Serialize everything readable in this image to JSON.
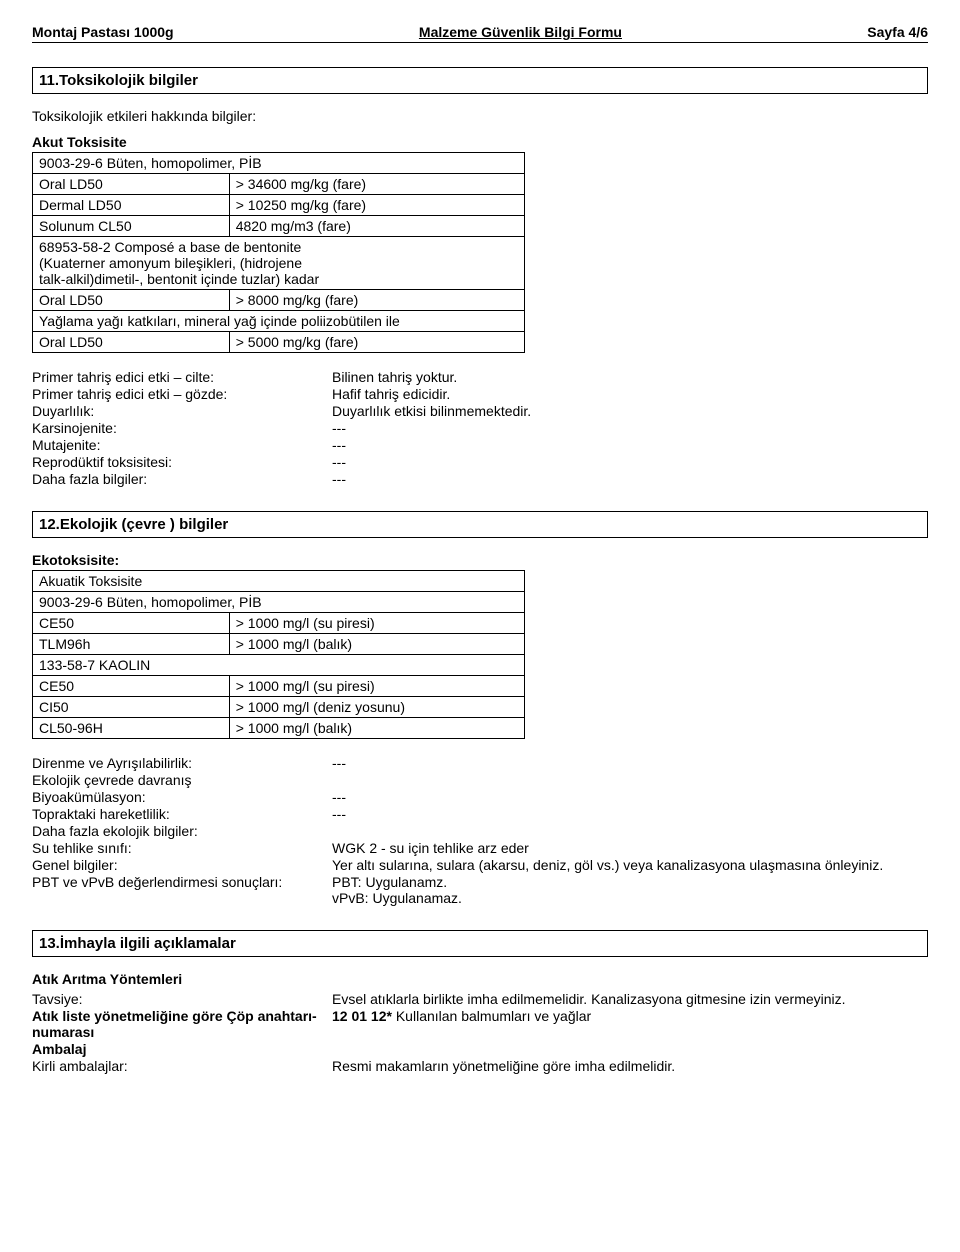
{
  "header": {
    "left": "Montaj Pastası  1000g",
    "center": "Malzeme Güvenlik Bilgi Formu",
    "right": "Sayfa 4/6"
  },
  "section11": {
    "title": "11.Toksikolojik bilgiler",
    "intro": "Toksikolojik etkileri hakkında bilgiler:",
    "akut_title": "Akut Toksisite",
    "rows": [
      [
        "9003-29-6 Büten, homopolimer, PİB",
        ""
      ],
      [
        "Oral LD50",
        "> 34600 mg/kg (fare)"
      ],
      [
        "Dermal LD50",
        "> 10250 mg/kg (fare)"
      ],
      [
        "Solunum CL50",
        "4820 mg/m3 (fare)"
      ],
      [
        "68953-58-2  Composé a base de bentonite\n         (Kuaterner amonyum bileşikleri, (hidrojene\n         talk-alkil)dimetil-, bentonit içinde tuzlar) kadar",
        ""
      ],
      [
        "Oral LD50",
        ">  8000 mg/kg (fare)"
      ],
      [
        "Yağlama yağı katkıları, mineral yağ içinde poliizobütilen ile",
        ""
      ],
      [
        "Oral LD50",
        ">  5000 mg/kg (fare)"
      ]
    ],
    "kv": [
      [
        "Primer tahriş edici etki – cilte:",
        "Bilinen tahriş yoktur."
      ],
      [
        "Primer tahriş edici etki – gözde:",
        "Hafif tahriş edicidir."
      ],
      [
        "Duyarlılık:",
        "Duyarlılık etkisi bilinmemektedir."
      ],
      [
        "Karsinojenite:",
        "---"
      ],
      [
        "Mutajenite:",
        "---"
      ],
      [
        "Reprodüktif toksisitesi:",
        "---"
      ],
      [
        "Daha fazla bilgiler:",
        "---"
      ]
    ]
  },
  "section12": {
    "title": "12.Ekolojik (çevre ) bilgiler",
    "eko_label": "Ekotoksisite:",
    "rows": [
      [
        "Akuatik Toksisite",
        ""
      ],
      [
        "9003-29-6 Büten, homopolimer, PİB",
        ""
      ],
      [
        "CE50",
        "> 1000 mg/l (su piresi)"
      ],
      [
        "TLM96h",
        "> 1000 mg/l (balık)"
      ],
      [
        "133-58-7 KAOLIN",
        ""
      ],
      [
        "CE50",
        "> 1000 mg/l (su piresi)"
      ],
      [
        "CI50",
        "> 1000 mg/l (deniz yosunu)"
      ],
      [
        "CL50-96H",
        "> 1000 mg/l (balık)"
      ]
    ],
    "kv": [
      [
        "Direnme ve Ayrışılabilirlik:",
        "---"
      ],
      [
        "Ekolojik çevrede davranış",
        ""
      ],
      [
        "Biyoakümülasyon:",
        "---"
      ],
      [
        "Topraktaki hareketlilik:",
        "---"
      ],
      [
        "Daha fazla ekolojik bilgiler:",
        ""
      ],
      [
        "Su tehlike sınıfı:",
        "WGK 2 -  su için tehlike arz eder"
      ],
      [
        "Genel bilgiler:",
        "Yer altı sularına, sulara (akarsu, deniz, göl vs.) veya kanalizasyona ulaşmasına önleyiniz."
      ],
      [
        "PBT ve vPvB değerlendirmesi sonuçları:",
        "PBT: Uygulanamz.\nvPvB: Uygulanamaz."
      ]
    ]
  },
  "section13": {
    "title": "13.İmhayla ilgili açıklamalar",
    "sub": "Atık Arıtma Yöntemleri",
    "kv": [
      [
        "Tavsiye:",
        "Evsel atıklarla birlikte imha edilmemelidir. Kanalizasyona gitmesine izin vermeyiniz."
      ],
      [
        "Atık liste yönetmeliğine göre Çöp anahtarı-numarası",
        "12 01 12*   Kullanılan balmumları ve yağlar"
      ],
      [
        "Ambalaj",
        ""
      ],
      [
        "Kirli ambalajlar:",
        "Resmi makamların yönetmeliğine göre imha edilmelidir."
      ]
    ]
  }
}
